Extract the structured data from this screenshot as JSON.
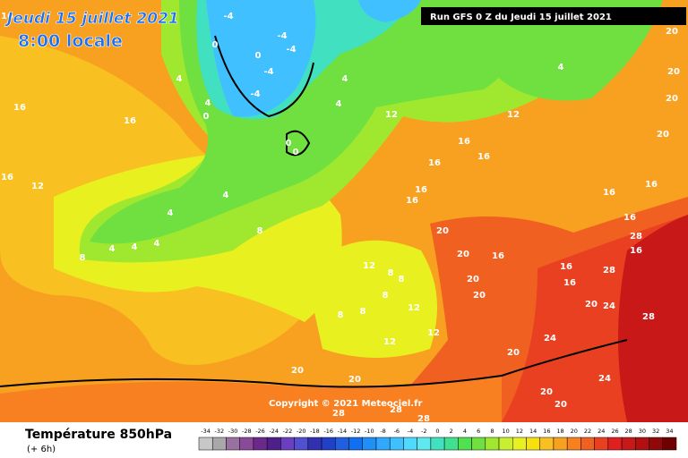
{
  "header": {
    "date": "Jeudi 15 juillet 2021",
    "time": "8:00 locale",
    "run": "Run GFS 0 Z du Jeudi 15 juillet 2021"
  },
  "copyright": "Copyright © 2021 Meteociel.fr",
  "footer": {
    "title": "Température 850hPa",
    "offset": "(+ 6h)"
  },
  "legend": {
    "ticks": [
      -34,
      -32,
      -30,
      -28,
      -26,
      -24,
      -22,
      -20,
      -18,
      -16,
      -14,
      -12,
      -10,
      -8,
      -6,
      -4,
      -2,
      0,
      2,
      4,
      6,
      8,
      10,
      12,
      14,
      16,
      18,
      20,
      22,
      24,
      26,
      28,
      30,
      32,
      34
    ],
    "colors": [
      "#c8c8c8",
      "#a8a8a8",
      "#9a70a0",
      "#8a4a9a",
      "#6a2a8a",
      "#50208a",
      "#6a40c0",
      "#5050d0",
      "#3030b0",
      "#2040c8",
      "#2060e0",
      "#1070f0",
      "#2090f8",
      "#30a8ff",
      "#40c0ff",
      "#50d8ff",
      "#60e8f0",
      "#40e0c0",
      "#40e090",
      "#50e050",
      "#70e040",
      "#a0e830",
      "#c8f030",
      "#e8f020",
      "#f8e010",
      "#f8c020",
      "#f8a020",
      "#f88020",
      "#f06020",
      "#e84020",
      "#e02020",
      "#c81818",
      "#b01010",
      "#900808",
      "#700000"
    ]
  },
  "contour_labels": [
    16,
    16,
    16,
    12,
    16,
    4,
    4,
    4,
    4,
    4,
    8,
    8,
    4,
    4,
    4,
    12,
    12,
    4,
    16,
    16,
    16,
    16,
    16,
    20,
    20,
    16,
    20,
    20,
    12,
    8,
    8,
    8,
    8,
    8,
    12,
    12,
    12,
    20,
    24,
    28,
    20,
    24,
    28,
    24,
    20,
    20,
    20,
    20,
    28,
    28,
    28,
    16,
    16,
    16,
    16,
    16,
    28,
    16,
    0,
    4,
    0,
    -4,
    -4,
    -4,
    -4,
    0,
    0,
    -4,
    0,
    20,
    20,
    20,
    20
  ]
}
